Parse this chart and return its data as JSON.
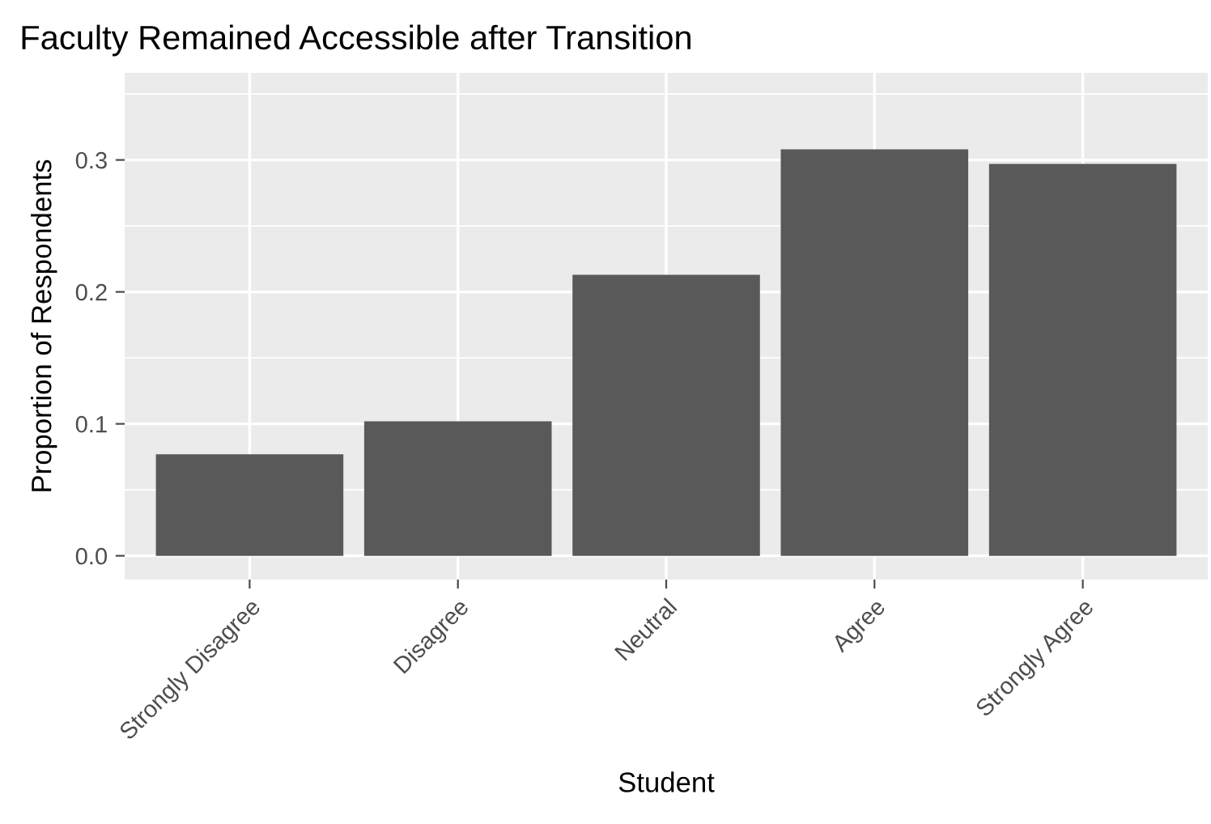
{
  "chart_data": {
    "type": "bar",
    "title": "Faculty Remained Accessible after Transition",
    "xlabel": "Student",
    "ylabel": "Proportion of Respondents",
    "categories": [
      "Strongly Disagree",
      "Disagree",
      "Neutral",
      "Agree",
      "Strongly Agree"
    ],
    "values": [
      0.077,
      0.102,
      0.213,
      0.308,
      0.297
    ],
    "color": "#595959",
    "ylim": [
      -0.018,
      0.366
    ],
    "yticks": [
      {
        "value": 0,
        "label": "0.0"
      },
      0.1,
      0.2,
      0.3
    ],
    "grid": true
  }
}
